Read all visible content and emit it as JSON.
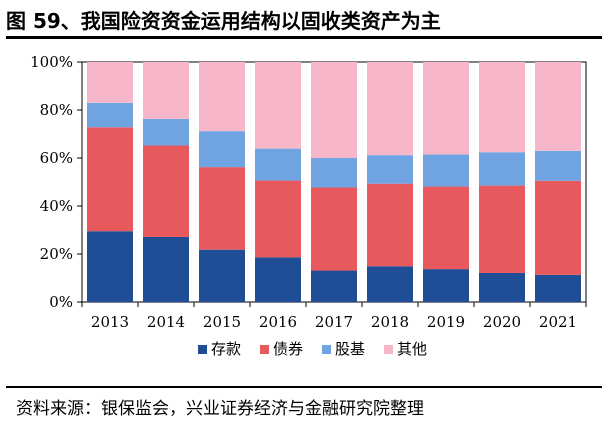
{
  "figure": {
    "title": "图 59、我国险资资金运用结构以固收类资产为主",
    "source": "资料来源：银保监会，兴业证券经济与金融研究院整理"
  },
  "chart_data": {
    "type": "bar",
    "stacked": true,
    "percent": true,
    "categories": [
      "2013",
      "2014",
      "2015",
      "2016",
      "2017",
      "2018",
      "2019",
      "2020",
      "2021"
    ],
    "series": [
      {
        "name": "存款",
        "color": "#1f4e96",
        "values": [
          29.5,
          27.1,
          21.8,
          18.6,
          13.1,
          14.9,
          13.7,
          12.1,
          11.3
        ]
      },
      {
        "name": "债券",
        "color": "#e8595e",
        "values": [
          43.3,
          38.1,
          34.4,
          32.0,
          34.6,
          34.4,
          34.4,
          36.4,
          39.2
        ]
      },
      {
        "name": "股基",
        "color": "#6fa3e1",
        "values": [
          10.2,
          11.1,
          15.0,
          13.3,
          12.3,
          11.9,
          13.4,
          13.9,
          12.5
        ]
      },
      {
        "name": "其他",
        "color": "#f7b7c8",
        "values": [
          17.0,
          23.7,
          28.8,
          36.1,
          40.0,
          38.8,
          38.5,
          37.6,
          37.0
        ]
      }
    ],
    "yticks": [
      "0%",
      "20%",
      "40%",
      "60%",
      "80%",
      "100%"
    ],
    "ylim": [
      0,
      100
    ],
    "grid": false,
    "legend_position": "bottom"
  }
}
